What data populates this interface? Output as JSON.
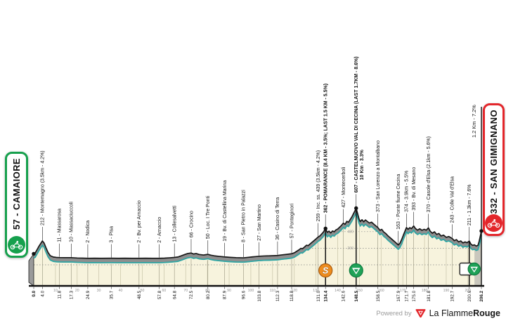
{
  "header": {
    "start_box": {
      "label": "57 - CAMAIORE",
      "color": "#16a04d"
    },
    "finish_box": {
      "label": "332 - SAN GIMIGNANO",
      "color": "#e3262b"
    }
  },
  "footer": {
    "powered_by": "Powered by",
    "brand": "La Flamme",
    "brand_bold": "Rouge"
  },
  "colors": {
    "green": "#16a04d",
    "red": "#e3262b",
    "teal": "#2fa6a4",
    "orange": "#ee8c1d",
    "ribbon_grey": "#8f8f8f",
    "cream": "#f7f3dd",
    "line_black": "#161616"
  },
  "chart_data": {
    "type": "area",
    "title": "",
    "xlabel": "km",
    "ylabel": "elevation (m)",
    "total_km": 206.2,
    "xlim": [
      0,
      206.2
    ],
    "ylim": [
      0,
      700
    ],
    "grid": true,
    "axis_major_ticks": [
      10,
      20,
      30,
      40,
      50,
      60,
      70,
      80,
      90,
      100,
      110,
      120,
      130,
      140,
      150,
      160,
      170,
      180,
      190,
      200
    ],
    "y_gridlines_m": [
      0,
      200,
      400
    ],
    "waypoints": [
      {
        "km": 0.0,
        "ele": 57,
        "label": "",
        "dist": "0.0",
        "bold_dist": true,
        "dot": true
      },
      {
        "km": 4.0,
        "ele": 212,
        "label": "212 - Montemagno (3.5km - 4.2%)",
        "dist": "4.0"
      },
      {
        "km": 11.8,
        "ele": 11,
        "label": "11 - Massarosa",
        "dist": "11.8"
      },
      {
        "km": 17.3,
        "ele": 10,
        "label": "10 - Massaciuccoli",
        "dist": "17.3"
      },
      {
        "km": 24.9,
        "ele": 2,
        "label": "2 - Nodica",
        "dist": "24.9"
      },
      {
        "km": 35.7,
        "ele": 3,
        "label": "3 - Pisa",
        "dist": "35.7"
      },
      {
        "km": 48.5,
        "ele": 2,
        "label": "2 - Bv. per Arnaccio",
        "dist": "48.5"
      },
      {
        "km": 57.8,
        "ele": 2,
        "label": "2 - Arnaccio",
        "dist": "57.8"
      },
      {
        "km": 64.8,
        "ele": 13,
        "label": "13 - Collesalvetti",
        "dist": "64.8"
      },
      {
        "km": 72.5,
        "ele": 66,
        "label": "66 - Crocino",
        "dist": "72.5"
      },
      {
        "km": 80.2,
        "ele": 50,
        "label": "50 - Loc. I Tre Ponti",
        "dist": "80.2"
      },
      {
        "km": 87.9,
        "ele": 19,
        "label": "19 - Bv. di Castellina Marina",
        "dist": "87.9"
      },
      {
        "km": 96.6,
        "ele": 8,
        "label": "8 - San Pietro in Palazzi",
        "dist": "96.6"
      },
      {
        "km": 103.8,
        "ele": 27,
        "label": "27 - San Martino",
        "dist": "103.8"
      },
      {
        "km": 112.3,
        "ele": 36,
        "label": "36 - Casino di Terra",
        "dist": "112.3"
      },
      {
        "km": 118.8,
        "ele": 57,
        "label": "57 - Ponteginori",
        "dist": "118.8"
      },
      {
        "km": 131.0,
        "ele": 259,
        "label": "259 - Inc. ss. 439 (3.5km - 4.2%)",
        "dist": "131.0"
      },
      {
        "km": 134.4,
        "ele": 362,
        "label": "362 - POMARANCE (8.4 KM - 3.5%; LAST 1.5 KM - 5.5%)",
        "dist": "134.4",
        "bold": true,
        "bold_dist": true,
        "icon": "sprint",
        "dot": true
      },
      {
        "km": 142.6,
        "ele": 427,
        "label": "427 - Montecerboli",
        "dist": "142.6"
      },
      {
        "km": 148.5,
        "ele": 607,
        "label": "607 - CASTELNUOVO VAL DI CECINA (LAST 1.7KM - 8.6%)",
        "sub": "10 Km - 3.3%",
        "dist": "148.5",
        "bold": true,
        "bold_dist": true,
        "icon": "feed",
        "dot": true
      },
      {
        "km": 158.5,
        "ele": 373,
        "label": "373 - San Lorenzo a Montalbano",
        "dist": "158.5"
      },
      {
        "km": 167.9,
        "ele": 163,
        "label": "163 - Ponte fiume Cecina",
        "dist": "167.9"
      },
      {
        "km": 171.7,
        "ele": 374,
        "label": "374 - 3.9km - 5.5%",
        "dist": "171.7"
      },
      {
        "km": 175.0,
        "ele": 393,
        "label": "393 - Bv. di Mesano",
        "dist": "175.0"
      },
      {
        "km": 181.8,
        "ele": 370,
        "label": "370 - Casole d'Elsa (2.1km - 5.6%)",
        "dist": "181.8"
      },
      {
        "km": 192.7,
        "ele": 243,
        "label": "243 - Colle Val d'Elsa",
        "dist": "192.7"
      },
      {
        "km": 200.6,
        "ele": 211,
        "label": "211 - 1.3km - 7.6%",
        "dist": "200.6",
        "icon": "lastkm"
      },
      {
        "km": 206.2,
        "ele": 332,
        "label": "1.2 Km - 7.2%",
        "dist": "206.2",
        "bold_dist": true,
        "dot": true,
        "tall_line": true
      }
    ],
    "profile": [
      [
        0,
        57
      ],
      [
        0.7,
        68
      ],
      [
        1.5,
        105
      ],
      [
        2.5,
        152
      ],
      [
        3.2,
        180
      ],
      [
        4,
        212
      ],
      [
        4.8,
        185
      ],
      [
        5.6,
        132
      ],
      [
        6.6,
        72
      ],
      [
        7.6,
        34
      ],
      [
        9,
        18
      ],
      [
        10.4,
        13
      ],
      [
        11.8,
        11
      ],
      [
        14,
        10
      ],
      [
        17.3,
        10
      ],
      [
        20,
        6
      ],
      [
        22.4,
        4
      ],
      [
        24.9,
        2
      ],
      [
        28,
        3
      ],
      [
        31,
        2
      ],
      [
        35.7,
        3
      ],
      [
        39,
        2
      ],
      [
        42,
        3
      ],
      [
        45,
        2
      ],
      [
        48.5,
        2
      ],
      [
        51.5,
        3
      ],
      [
        54.5,
        2
      ],
      [
        57.8,
        2
      ],
      [
        60.2,
        4
      ],
      [
        62.5,
        8
      ],
      [
        64.8,
        13
      ],
      [
        66.4,
        18
      ],
      [
        68,
        32
      ],
      [
        69.6,
        48
      ],
      [
        70.9,
        60
      ],
      [
        72.5,
        66
      ],
      [
        73.6,
        54
      ],
      [
        74.8,
        60
      ],
      [
        76.2,
        48
      ],
      [
        78.2,
        42
      ],
      [
        80.2,
        50
      ],
      [
        81.6,
        40
      ],
      [
        83.2,
        32
      ],
      [
        85.2,
        26
      ],
      [
        87.9,
        19
      ],
      [
        90.4,
        14
      ],
      [
        93.2,
        10
      ],
      [
        96.6,
        8
      ],
      [
        98.6,
        13
      ],
      [
        100.6,
        19
      ],
      [
        102.2,
        23
      ],
      [
        103.8,
        27
      ],
      [
        106,
        30
      ],
      [
        108.5,
        32
      ],
      [
        110.5,
        34
      ],
      [
        112.3,
        36
      ],
      [
        114.5,
        44
      ],
      [
        116.6,
        50
      ],
      [
        118.8,
        57
      ],
      [
        120,
        68
      ],
      [
        121.2,
        88
      ],
      [
        122.2,
        105
      ],
      [
        123,
        122
      ],
      [
        123.8,
        118
      ],
      [
        124.8,
        140
      ],
      [
        125.6,
        160
      ],
      [
        126.4,
        155
      ],
      [
        127.4,
        178
      ],
      [
        128.4,
        200
      ],
      [
        129.4,
        222
      ],
      [
        130.2,
        240
      ],
      [
        131,
        259
      ],
      [
        131.8,
        272
      ],
      [
        132.6,
        295
      ],
      [
        133.4,
        318
      ],
      [
        134.4,
        362
      ],
      [
        135.2,
        315
      ],
      [
        136,
        330
      ],
      [
        136.8,
        308
      ],
      [
        137.6,
        332
      ],
      [
        138.4,
        322
      ],
      [
        139.2,
        345
      ],
      [
        140,
        355
      ],
      [
        140.8,
        375
      ],
      [
        141.6,
        395
      ],
      [
        142.6,
        427
      ],
      [
        143.4,
        412
      ],
      [
        144.2,
        448
      ],
      [
        145,
        438
      ],
      [
        145.8,
        472
      ],
      [
        146.6,
        505
      ],
      [
        147.4,
        548
      ],
      [
        148,
        578
      ],
      [
        148.5,
        607
      ],
      [
        149.2,
        540
      ],
      [
        149.8,
        480
      ],
      [
        150.4,
        445
      ],
      [
        151.2,
        468
      ],
      [
        152,
        442
      ],
      [
        152.8,
        465
      ],
      [
        153.6,
        448
      ],
      [
        154.6,
        428
      ],
      [
        155.6,
        438
      ],
      [
        156.6,
        415
      ],
      [
        157.5,
        395
      ],
      [
        158.5,
        373
      ],
      [
        159.5,
        340
      ],
      [
        160.3,
        352
      ],
      [
        161.2,
        320
      ],
      [
        162.2,
        300
      ],
      [
        163.2,
        272
      ],
      [
        164.2,
        250
      ],
      [
        165.4,
        222
      ],
      [
        166.6,
        195
      ],
      [
        167.9,
        163
      ],
      [
        168.7,
        185
      ],
      [
        169.5,
        230
      ],
      [
        170.3,
        285
      ],
      [
        171,
        330
      ],
      [
        171.7,
        374
      ],
      [
        172.4,
        352
      ],
      [
        173.2,
        372
      ],
      [
        174,
        360
      ],
      [
        175,
        393
      ],
      [
        175.8,
        362
      ],
      [
        176.8,
        342
      ],
      [
        177.8,
        358
      ],
      [
        178.8,
        340
      ],
      [
        179.8,
        352
      ],
      [
        180.8,
        342
      ],
      [
        181.8,
        370
      ],
      [
        182.6,
        330
      ],
      [
        183.6,
        305
      ],
      [
        184.6,
        322
      ],
      [
        185.6,
        290
      ],
      [
        186.6,
        302
      ],
      [
        187.6,
        272
      ],
      [
        188.8,
        282
      ],
      [
        190,
        255
      ],
      [
        191.2,
        265
      ],
      [
        192.7,
        243
      ],
      [
        193.7,
        215
      ],
      [
        194.7,
        228
      ],
      [
        195.7,
        200
      ],
      [
        196.7,
        212
      ],
      [
        197.7,
        188
      ],
      [
        198.7,
        200
      ],
      [
        199.6,
        190
      ],
      [
        200.6,
        211
      ],
      [
        201.4,
        172
      ],
      [
        202.2,
        158
      ],
      [
        203,
        165
      ],
      [
        203.8,
        150
      ],
      [
        204.6,
        158
      ],
      [
        205.1,
        200
      ],
      [
        205.6,
        258
      ],
      [
        206.2,
        332
      ]
    ]
  }
}
